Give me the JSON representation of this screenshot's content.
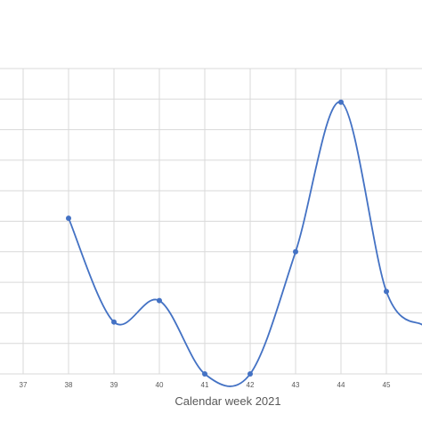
{
  "chart_data": {
    "type": "line",
    "xlabel": "Calendar week 2021",
    "x": [
      37,
      38,
      39,
      40,
      41,
      42,
      43,
      44,
      45
    ],
    "tick_labels": [
      "37",
      "38",
      "39",
      "40",
      "41",
      "42",
      "43",
      "44",
      "45"
    ],
    "xlim": [
      36.5,
      45.8
    ],
    "ylim": [
      0,
      10
    ],
    "grid": true,
    "smooth": true,
    "series": [
      {
        "color": "#4472c4",
        "points": [
          {
            "x": 38,
            "y": 5.1
          },
          {
            "x": 39,
            "y": 1.7
          },
          {
            "x": 40,
            "y": 2.4
          },
          {
            "x": 41,
            "y": 0
          },
          {
            "x": 42,
            "y": 0
          },
          {
            "x": 43,
            "y": 4.0
          },
          {
            "x": 44,
            "y": 8.9
          },
          {
            "x": 45,
            "y": 2.7
          },
          {
            "x": 45.8,
            "y": 1.6
          }
        ]
      }
    ]
  }
}
